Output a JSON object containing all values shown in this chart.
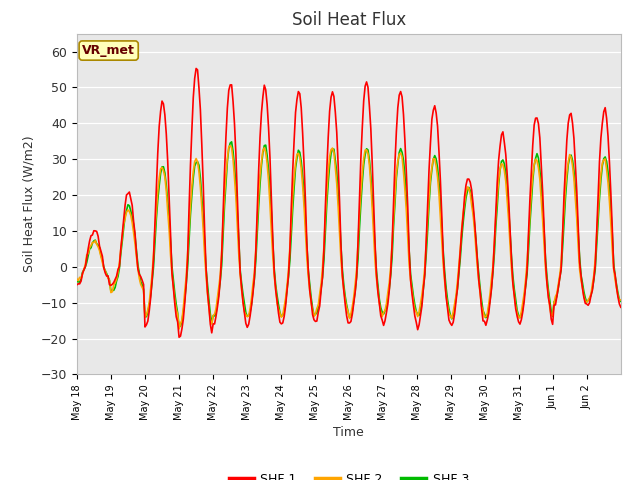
{
  "title": "Soil Heat Flux",
  "ylabel": "Soil Heat Flux (W/m2)",
  "xlabel": "Time",
  "ylim": [
    -30,
    65
  ],
  "yticks": [
    -30,
    -20,
    -10,
    0,
    10,
    20,
    30,
    40,
    50,
    60
  ],
  "colors": {
    "SHF 1": "#ff0000",
    "SHF 2": "#ffa500",
    "SHF 3": "#00bb00"
  },
  "legend_label": "VR_met",
  "plot_bg_color": "#e8e8e8",
  "fig_bg_color": "#ffffff",
  "line_width": 1.2,
  "xtick_labels": [
    "May 18",
    "May 19",
    "May 20",
    "May 21",
    "May 22",
    "May 23",
    "May 24",
    "May 25",
    "May 26",
    "May 27",
    "May 28",
    "May 29",
    "May 30",
    "May 31",
    "Jun 1",
    "Jun 2"
  ],
  "n_points": 384
}
